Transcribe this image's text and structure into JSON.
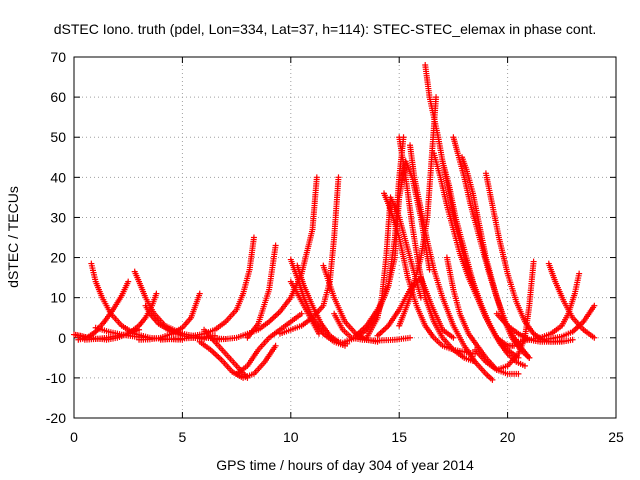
{
  "chart_data": {
    "type": "scatter",
    "title": "dSTEC Iono. truth (pdel, Lon=334, Lat=37, h=114): STEC-STEC_elemax in phase cont.",
    "xlabel": "GPS time / hours of day 304 of year 2014",
    "ylabel": "dSTEC  / TECUs",
    "xlim": [
      0,
      25
    ],
    "ylim": [
      -20,
      70
    ],
    "xticks": [
      0,
      5,
      10,
      15,
      20,
      25
    ],
    "yticks": [
      -20,
      -10,
      0,
      10,
      20,
      30,
      40,
      50,
      60,
      70
    ],
    "grid": true,
    "marker": "+",
    "color": "#ff0000",
    "series": [
      {
        "x": [
          0,
          0.3,
          0.6,
          1.0,
          1.4
        ],
        "y": [
          0.8,
          0.5,
          0.1,
          -0.2,
          -0.4
        ]
      },
      {
        "x": [
          0.8,
          1.0,
          1.3,
          1.7,
          2.2,
          2.8,
          3.5,
          4.2,
          5.0
        ],
        "y": [
          18.5,
          14,
          10,
          6,
          3,
          1,
          0,
          -0.3,
          -0.5
        ]
      },
      {
        "x": [
          0.2,
          0.6,
          1.0,
          1.4,
          1.8,
          2.2,
          2.5
        ],
        "y": [
          -0.5,
          0,
          1.5,
          4,
          7,
          10.5,
          14
        ]
      },
      {
        "x": [
          0.5,
          1.0,
          1.5,
          2.0,
          2.5,
          3.0
        ],
        "y": [
          -0.5,
          -0.3,
          0,
          0.5,
          1,
          2
        ]
      },
      {
        "x": [
          2.8,
          3.0,
          3.3,
          3.7,
          4.2,
          5.0,
          6.0,
          7.0
        ],
        "y": [
          16.5,
          14,
          10,
          6,
          3,
          1,
          0,
          -0.3
        ]
      },
      {
        "x": [
          1.0,
          1.6,
          2.2,
          2.8,
          3.4
        ],
        "y": [
          2.5,
          1.5,
          0.8,
          0.3,
          0
        ]
      },
      {
        "x": [
          1.5,
          2.0,
          2.5,
          3.0,
          3.3,
          3.6,
          3.8
        ],
        "y": [
          -0.5,
          0,
          1,
          3,
          5,
          8,
          11
        ]
      },
      {
        "x": [
          3.3,
          3.5,
          3.9,
          4.5,
          5.0,
          5.5,
          6.0
        ],
        "y": [
          8,
          6,
          3.5,
          1.5,
          0.5,
          0,
          -0.3
        ]
      },
      {
        "x": [
          3.0,
          3.5,
          4.0,
          4.5,
          5.0,
          5.4,
          5.8
        ],
        "y": [
          -0.5,
          -0.4,
          0,
          1,
          2.5,
          5,
          11
        ]
      },
      {
        "x": [
          4.0,
          4.5,
          5.0,
          5.5,
          6.0,
          6.5
        ],
        "y": [
          -0.5,
          -0.3,
          -0.2,
          0,
          0.2,
          0.5
        ]
      },
      {
        "x": [
          5.5,
          6.0,
          6.5,
          7.0,
          7.5,
          7.8,
          8.1,
          8.3
        ],
        "y": [
          0.5,
          1,
          2,
          4,
          7,
          11,
          17,
          25
        ]
      },
      {
        "x": [
          5.8,
          6.3,
          6.8,
          7.3,
          7.8,
          8.3,
          8.8,
          9.3
        ],
        "y": [
          -1,
          -3,
          -5.5,
          -8.5,
          -10,
          -9,
          -6,
          -2
        ]
      },
      {
        "x": [
          6.0,
          6.5,
          7.0,
          7.5,
          8.0
        ],
        "y": [
          2,
          -1,
          -4,
          -7,
          -10
        ]
      },
      {
        "x": [
          7.5,
          8.0,
          8.5,
          9.0,
          9.5,
          10.0,
          10.5
        ],
        "y": [
          -9,
          -7,
          -3,
          0,
          2,
          4,
          6
        ]
      },
      {
        "x": [
          6.5,
          7.0,
          7.5,
          8.0,
          8.5,
          9.0,
          9.5,
          10.0,
          10.5,
          11.0,
          11.2
        ],
        "y": [
          -0.5,
          -0.3,
          0,
          1,
          2,
          4,
          6.5,
          10,
          16,
          27,
          40
        ]
      },
      {
        "x": [
          8.0,
          8.5,
          9.0,
          9.3
        ],
        "y": [
          0,
          3.5,
          12,
          23
        ]
      },
      {
        "x": [
          10.0,
          10.3,
          10.6,
          11.0,
          11.5,
          12.0,
          12.5
        ],
        "y": [
          19.5,
          15,
          10,
          5,
          1,
          -1,
          -2
        ]
      },
      {
        "x": [
          10.3,
          10.6,
          11.0,
          11.4,
          11.8,
          12.2,
          12.6
        ],
        "y": [
          18,
          13,
          8,
          3.5,
          0.5,
          -1,
          -1.5
        ]
      },
      {
        "x": [
          9.5,
          10.0,
          10.5,
          11.0,
          11.5,
          11.8,
          12.0,
          12.2
        ],
        "y": [
          1,
          2,
          3,
          5,
          8,
          14,
          25,
          40
        ]
      },
      {
        "x": [
          10.0,
          10.5,
          11.0,
          11.3
        ],
        "y": [
          14,
          9,
          4,
          1
        ]
      },
      {
        "x": [
          11.5,
          12.0,
          12.5,
          13.0,
          13.5,
          14.0
        ],
        "y": [
          18,
          10,
          4,
          1,
          -0.5,
          -1
        ]
      },
      {
        "x": [
          12.0,
          12.4,
          12.8,
          13.3,
          14.0,
          14.8,
          15.5
        ],
        "y": [
          6,
          2,
          0,
          -0.5,
          -0.7,
          -0.5,
          0
        ]
      },
      {
        "x": [
          12.5,
          13.0,
          13.5,
          14.0,
          14.5,
          14.8,
          15.0,
          15.2
        ],
        "y": [
          -1,
          0,
          2,
          6,
          13,
          25,
          40,
          50
        ]
      },
      {
        "x": [
          13.0,
          13.5,
          14.0,
          14.3,
          14.5,
          14.8,
          15.0,
          15.3,
          15.6,
          16.0,
          16.4
        ],
        "y": [
          0.5,
          3,
          7,
          10,
          13,
          20,
          35,
          44,
          40,
          30,
          17
        ]
      },
      {
        "x": [
          13.5,
          14.0,
          14.2,
          14.4,
          14.6,
          15.0,
          15.5,
          16.0
        ],
        "y": [
          0,
          5,
          10,
          20,
          35,
          30,
          20,
          10
        ]
      },
      {
        "x": [
          14.0,
          14.5,
          15.0,
          15.5,
          16.0,
          16.5,
          17.0,
          17.5
        ],
        "y": [
          0.5,
          3,
          7,
          12,
          15,
          8,
          2,
          0
        ]
      },
      {
        "x": [
          14.3,
          14.6,
          15.0,
          15.4,
          15.8,
          16.2,
          16.6,
          17.0,
          17.5,
          18.0,
          18.5
        ],
        "y": [
          36,
          32,
          25,
          15,
          8,
          3,
          0,
          -2,
          -3,
          -3.5,
          -4
        ]
      },
      {
        "x": [
          15.0,
          15.3,
          15.6,
          15.9,
          16.2,
          16.6,
          17.0,
          17.5,
          18.0,
          18.5
        ],
        "y": [
          50,
          40,
          28,
          18,
          10,
          4,
          0,
          -3,
          -5,
          -6
        ]
      },
      {
        "x": [
          15.5,
          15.7,
          16.0,
          16.3,
          16.6,
          17.0,
          17.5,
          18.0,
          18.5,
          19.0,
          19.3
        ],
        "y": [
          48,
          40,
          32,
          24,
          17,
          10,
          3,
          -2,
          -6,
          -9,
          -10.5
        ]
      },
      {
        "x": [
          15.0,
          15.5,
          16.0,
          16.3,
          16.5,
          16.7
        ],
        "y": [
          3,
          10,
          20,
          30,
          45,
          60
        ]
      },
      {
        "x": [
          16.2,
          16.4,
          16.6,
          16.8,
          17.0,
          17.3,
          17.6,
          18.0,
          18.5,
          19.0,
          19.5,
          20.0,
          20.3
        ],
        "y": [
          68,
          60,
          55,
          50,
          44,
          36,
          28,
          20,
          12,
          5,
          0,
          -2,
          -2
        ]
      },
      {
        "x": [
          16.6,
          16.9,
          17.2,
          17.5,
          17.8,
          18.2,
          18.6,
          19.0,
          19.5,
          20.0,
          20.5
        ],
        "y": [
          46,
          40,
          33,
          27,
          21,
          15,
          10,
          5,
          0,
          -3,
          -5
        ]
      },
      {
        "x": [
          17.0,
          17.3,
          17.6,
          18.0,
          18.4,
          18.8,
          19.2,
          19.6,
          20.0,
          20.4,
          20.8
        ],
        "y": [
          44,
          38,
          30,
          22,
          14,
          8,
          3,
          -1,
          -4,
          -6,
          -7
        ]
      },
      {
        "x": [
          17.5,
          17.7,
          18.0,
          18.3,
          18.7,
          19.1,
          19.5,
          19.9,
          20.3,
          20.7,
          21.0
        ],
        "y": [
          50,
          46,
          40,
          33,
          25,
          17,
          10,
          4,
          0,
          -3,
          -5
        ]
      },
      {
        "x": [
          17.9,
          18.1,
          18.4,
          18.7,
          19.0,
          19.4,
          19.8,
          20.2,
          20.6,
          21.0
        ],
        "y": [
          45,
          42,
          36,
          28,
          20,
          12,
          5,
          0,
          -3,
          -5
        ]
      },
      {
        "x": [
          17.2,
          17.5,
          17.8,
          18.2,
          18.6,
          19.0,
          19.5,
          20.0,
          20.5
        ],
        "y": [
          20,
          12,
          6,
          1,
          -2,
          -5,
          -8,
          -9,
          -9
        ]
      },
      {
        "x": [
          19.0,
          19.3,
          19.6,
          20.0,
          20.4,
          20.8,
          21.2,
          21.6,
          22.0,
          22.5,
          23.0
        ],
        "y": [
          41,
          33,
          25,
          16,
          9,
          4,
          1,
          -0.5,
          -1,
          -1,
          -0.5
        ]
      },
      {
        "x": [
          18.5,
          19.0,
          19.5,
          20.0,
          20.5,
          20.8,
          21.0,
          21.2
        ],
        "y": [
          -3,
          -6,
          -8,
          -7,
          -4,
          0,
          8,
          19
        ]
      },
      {
        "x": [
          19.5,
          20.0,
          20.5,
          21.0,
          21.5,
          22.0,
          22.5
        ],
        "y": [
          6,
          3,
          1,
          -0.5,
          -1,
          -1,
          -0.8
        ]
      },
      {
        "x": [
          21.9,
          22.2,
          22.6,
          23.0,
          23.5,
          24.0
        ],
        "y": [
          18.5,
          14,
          9,
          5,
          2,
          0
        ]
      },
      {
        "x": [
          20.5,
          21.0,
          21.5,
          22.0,
          22.5,
          22.8,
          23.1,
          23.3
        ],
        "y": [
          -1,
          -0.5,
          0,
          1,
          3,
          6,
          11,
          16
        ]
      },
      {
        "x": [
          21.5,
          22.0,
          22.5,
          23.0,
          23.5,
          24.0
        ],
        "y": [
          -0.5,
          -0.2,
          0.3,
          1.5,
          4,
          8
        ]
      }
    ]
  }
}
